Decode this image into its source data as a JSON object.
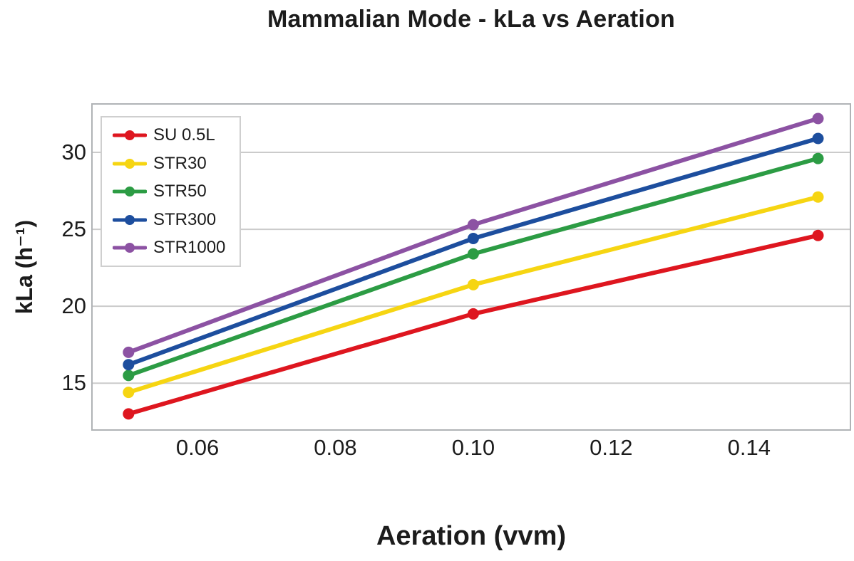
{
  "chart_data": {
    "type": "line",
    "title": "Mammalian Mode - kLa vs Aeration",
    "xlabel": "Aeration (vvm)",
    "ylabel": "kLa (h⁻¹)",
    "x": [
      0.05,
      0.1,
      0.15
    ],
    "series": [
      {
        "name": "SU 0.5L",
        "color": "#de161f",
        "values": [
          13.0,
          19.5,
          24.6
        ]
      },
      {
        "name": "STR30",
        "color": "#f6d512",
        "values": [
          14.4,
          21.4,
          27.1
        ]
      },
      {
        "name": "STR50",
        "color": "#2c9c44",
        "values": [
          15.5,
          23.4,
          29.6
        ]
      },
      {
        "name": "STR300",
        "color": "#1d4e9e",
        "values": [
          16.2,
          24.4,
          30.9
        ]
      },
      {
        "name": "STR1000",
        "color": "#8c52a3",
        "values": [
          17.0,
          25.3,
          32.2
        ]
      }
    ],
    "xticks": {
      "values": [
        0.06,
        0.08,
        0.1,
        0.12,
        0.14
      ],
      "labels": [
        "0.06",
        "0.08",
        "0.10",
        "0.12",
        "0.14"
      ]
    },
    "yticks": {
      "values": [
        15,
        20,
        25,
        30
      ],
      "labels": [
        "15",
        "20",
        "25",
        "30"
      ]
    },
    "xlim": [
      0.0448,
      0.1546
    ],
    "ylim": [
      12.0,
      33.1
    ],
    "grid": "horizontal-only",
    "legend_position": "upper-left",
    "line_width": 6,
    "marker": "circle",
    "marker_radius": 8
  },
  "colors": {
    "background": "#ffffff",
    "text": "#1c1c1c",
    "grid": "#cbcbcb",
    "frame": "#b0b3b6",
    "legend_border": "#cfcfcf"
  }
}
